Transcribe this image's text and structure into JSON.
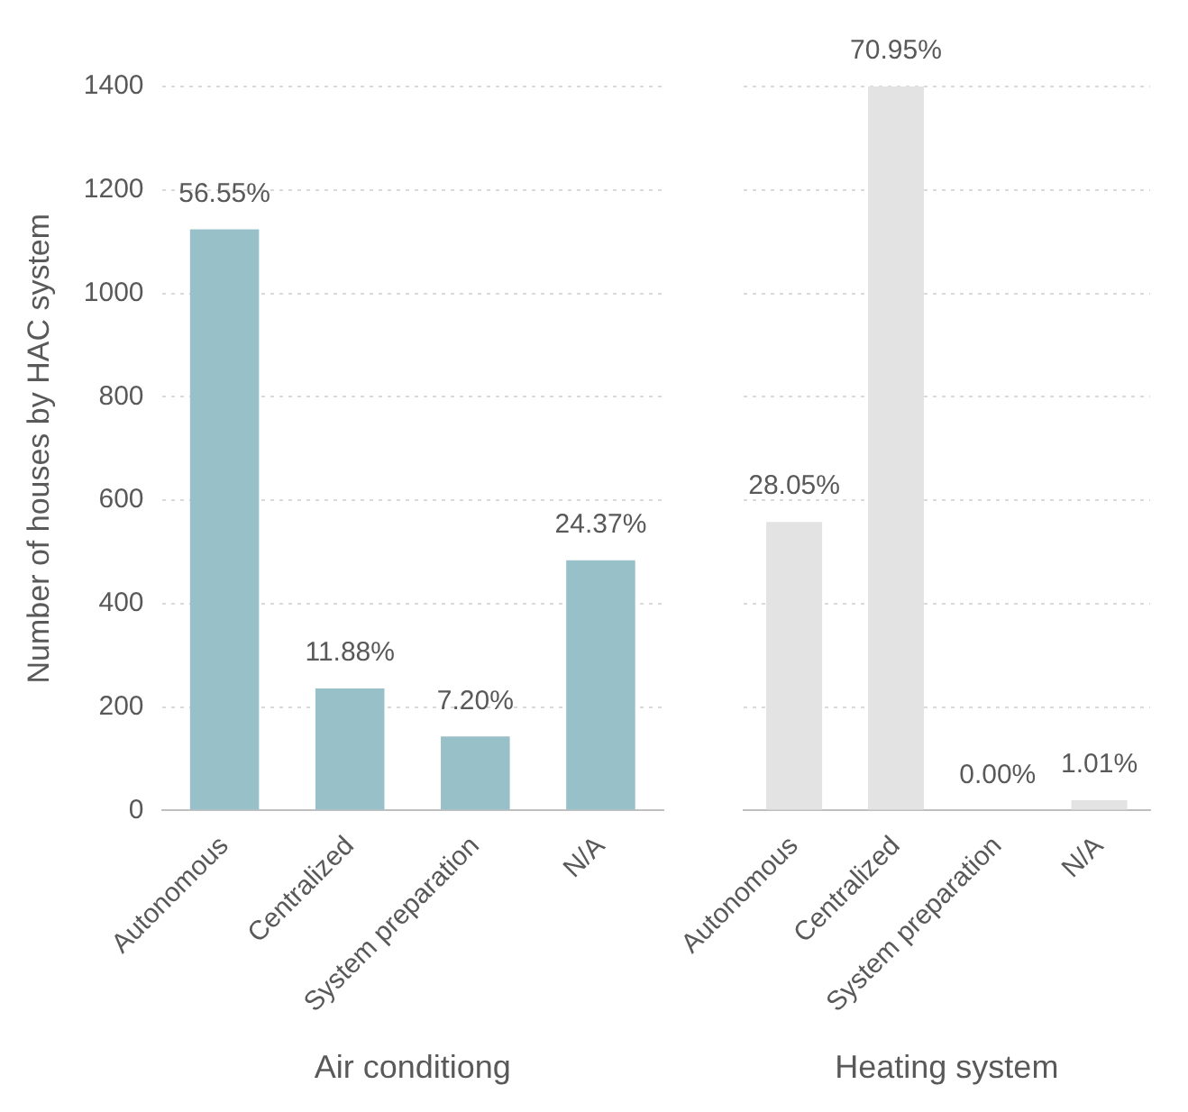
{
  "chart_data": [
    {
      "type": "bar",
      "categories": [
        "Autonomous",
        "Centralized",
        "System preparation",
        "N/A"
      ],
      "values": [
        1124,
        236,
        143,
        484
      ],
      "color": "#97c0c9",
      "xlabel": "Air conditiong",
      "ylabel": "Number of houses by HAC system",
      "ylim": [
        0,
        1400
      ],
      "yticks": [
        0,
        200,
        400,
        600,
        800,
        1000,
        1200,
        1400
      ],
      "grid": "y",
      "annotations": [
        {
          "text": "56.55%",
          "x": "Autonomous",
          "y": 1124
        },
        {
          "text": "11.88%",
          "x": "Centralized",
          "y": 236
        },
        {
          "text": "7.20%",
          "x": "System preparation",
          "y": 143
        },
        {
          "text": "24.37%",
          "x": "N/A",
          "y": 484
        }
      ]
    },
    {
      "type": "bar",
      "categories": [
        "Autonomous",
        "Centralized",
        "System preparation",
        "N/A"
      ],
      "values": [
        558,
        1400,
        0,
        20
      ],
      "color": "#e3e3e3",
      "xlabel": "Heating system",
      "ylim": [
        0,
        1400
      ],
      "yticks": [
        0,
        200,
        400,
        600,
        800,
        1000,
        1200,
        1400
      ],
      "grid": "y",
      "tick_labels": "x",
      "annotations": [
        {
          "text": "28.05%",
          "x": "Autonomous",
          "y": 558
        },
        {
          "text": "70.95%",
          "x": "Centralized",
          "y": 1400
        },
        {
          "text": "0.00%",
          "x": "System preparation",
          "y": 0
        },
        {
          "text": "1.01%",
          "x": "N/A",
          "y": 20
        }
      ]
    }
  ]
}
